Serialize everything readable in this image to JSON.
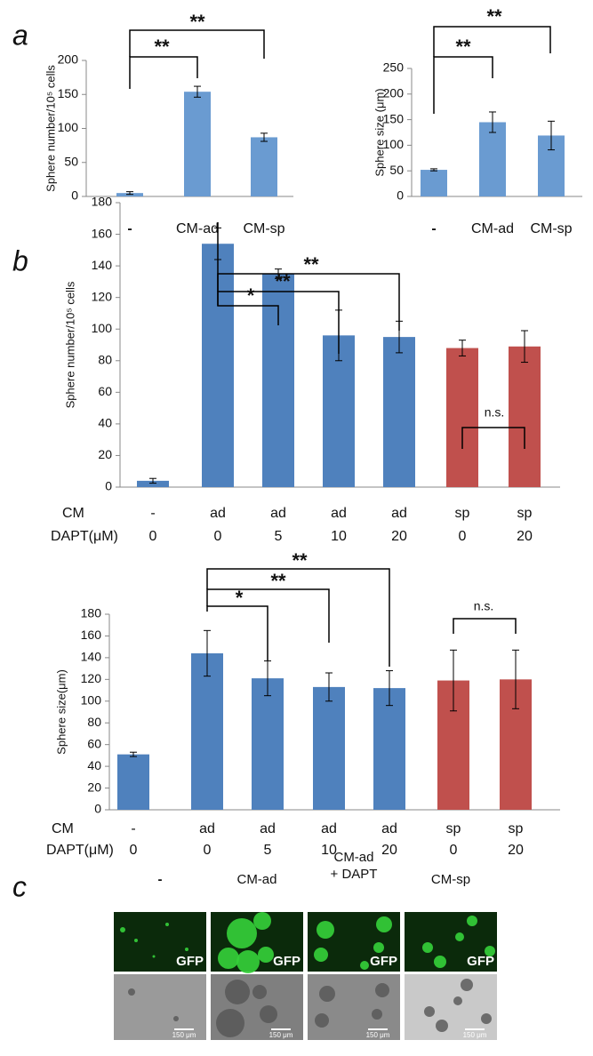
{
  "panel_labels": [
    "a",
    "b",
    "c"
  ],
  "chart_data": [
    {
      "type": "bar",
      "ylabel": "Sphere number/10⁵ cells",
      "categories": [
        "-",
        "CM-ad",
        "CM-sp"
      ],
      "values": [
        5,
        154,
        87
      ],
      "errors": [
        2,
        8,
        6
      ],
      "color": "#6a9bd1",
      "ylim": [
        0,
        200
      ],
      "yticks": [
        0,
        50,
        100,
        150,
        200
      ],
      "annotations": [
        "**",
        "**"
      ]
    },
    {
      "type": "bar",
      "ylabel": "Sphere size (μm)",
      "categories": [
        "-",
        "CM-ad",
        "CM-sp"
      ],
      "values": [
        52,
        145,
        119
      ],
      "errors": [
        2,
        20,
        28
      ],
      "color": "#6a9bd1",
      "ylim": [
        0,
        250
      ],
      "yticks": [
        0,
        50,
        100,
        150,
        200,
        250
      ],
      "annotations": [
        "**",
        "**"
      ]
    },
    {
      "type": "bar",
      "ylabel": "Sphere number/10⁵ cells",
      "rows": [
        {
          "name": "CM",
          "labels": [
            "-",
            "ad",
            "ad",
            "ad",
            "ad",
            "sp",
            "sp"
          ]
        },
        {
          "name": "DAPT(μM)",
          "labels": [
            "0",
            "0",
            "5",
            "10",
            "20",
            "0",
            "20"
          ]
        }
      ],
      "values": [
        4,
        154,
        135,
        96,
        95,
        88,
        89
      ],
      "errors": [
        1.5,
        10,
        3,
        16,
        10,
        5,
        10
      ],
      "colors": [
        "#4f81bd",
        "#4f81bd",
        "#4f81bd",
        "#4f81bd",
        "#4f81bd",
        "#c0504d",
        "#c0504d"
      ],
      "ylim": [
        0,
        180
      ],
      "yticks": [
        0,
        20,
        40,
        60,
        80,
        100,
        120,
        140,
        160,
        180
      ],
      "annotations": [
        "**",
        "**",
        "*",
        "n.s."
      ]
    },
    {
      "type": "bar",
      "ylabel": "Sphere size(μm)",
      "rows": [
        {
          "name": "CM",
          "labels": [
            "-",
            "ad",
            "ad",
            "ad",
            "ad",
            "sp",
            "sp"
          ]
        },
        {
          "name": "DAPT(μM)",
          "labels": [
            "0",
            "0",
            "5",
            "10",
            "20",
            "0",
            "20"
          ]
        }
      ],
      "values": [
        51,
        144,
        121,
        113,
        112,
        119,
        120
      ],
      "errors": [
        2,
        21,
        16,
        13,
        16,
        28,
        27
      ],
      "colors": [
        "#4f81bd",
        "#4f81bd",
        "#4f81bd",
        "#4f81bd",
        "#4f81bd",
        "#c0504d",
        "#c0504d"
      ],
      "ylim": [
        0,
        180
      ],
      "yticks": [
        0,
        20,
        40,
        60,
        80,
        100,
        120,
        140,
        160,
        180
      ],
      "annotations": [
        "**",
        "**",
        "*",
        "n.s."
      ]
    }
  ],
  "panel_c": {
    "conditions": [
      [
        "-"
      ],
      [
        "CM-ad"
      ],
      [
        "CM-ad",
        "+ DAPT"
      ],
      [
        "CM-sp"
      ]
    ],
    "channel": "GFP",
    "scale_bar": "150 μm"
  }
}
